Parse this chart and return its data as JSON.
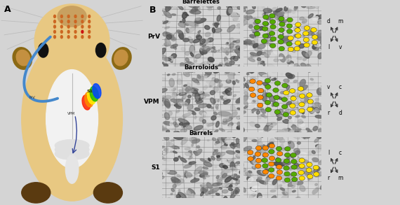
{
  "fig_width": 5.7,
  "fig_height": 2.93,
  "dpi": 100,
  "bg_color": "#d4d4d4",
  "panel_A_label": "A",
  "panel_B_label": "B",
  "row_labels": [
    "PrV",
    "VPM",
    "S1"
  ],
  "col_titles": [
    "Barrelettes",
    "Barroloids",
    "Barrels"
  ],
  "col_titles_actual": [
    "Barrelettes",
    "Barroloids",
    "Barrels"
  ],
  "compass_1": {
    "tl": "d",
    "tr": "m",
    "bl": "l",
    "br": "v"
  },
  "compass_2": {
    "tl": "v",
    "tr": "c",
    "bl": "r",
    "br": "d"
  },
  "compass_3": {
    "tl": "l",
    "tr": "c",
    "bl": "r",
    "br": "m"
  },
  "mouse_body": "#e8c882",
  "mouse_dark": "#c8a060",
  "mouse_ear": "#8b6914",
  "mouse_ear_inner": "#c49040",
  "mouse_foot": "#5a3a10",
  "brain_color": "#f2f2f2",
  "brain_edge": "#cccccc",
  "pathway_blue": "#4488cc",
  "pathway_dark": "#334499",
  "s1_colors": [
    "#ff2200",
    "#ff8800",
    "#ffee00",
    "#22bb00",
    "#0044ff"
  ],
  "dot_orange": "#ff8800",
  "dot_green": "#55aa00",
  "dot_yellow": "#ffdd00",
  "whisker_color": "#bbbbbb",
  "vibrissa_color": "#cc6622",
  "red_dot": "#cc1111",
  "label_fs": 7,
  "title_fs": 6,
  "rowlabel_fs": 6.5
}
